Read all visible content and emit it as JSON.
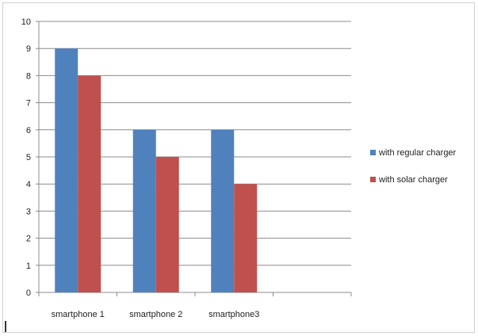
{
  "chart_data": {
    "type": "bar",
    "categories": [
      "smartphone 1",
      "smartphone 2",
      "smartphone3"
    ],
    "series": [
      {
        "name": "with regular charger",
        "values": [
          9,
          6,
          6
        ],
        "color": "#4f81bd"
      },
      {
        "name": "with solar charger",
        "values": [
          8,
          5,
          4
        ],
        "color": "#c0504d"
      }
    ],
    "ylim": [
      0,
      10
    ],
    "yticks": [
      "0",
      "1",
      "2",
      "3",
      "4",
      "5",
      "6",
      "7",
      "8",
      "9",
      "10"
    ],
    "grid": true,
    "legend": "right",
    "title": "",
    "xlabel": "",
    "ylabel": ""
  }
}
